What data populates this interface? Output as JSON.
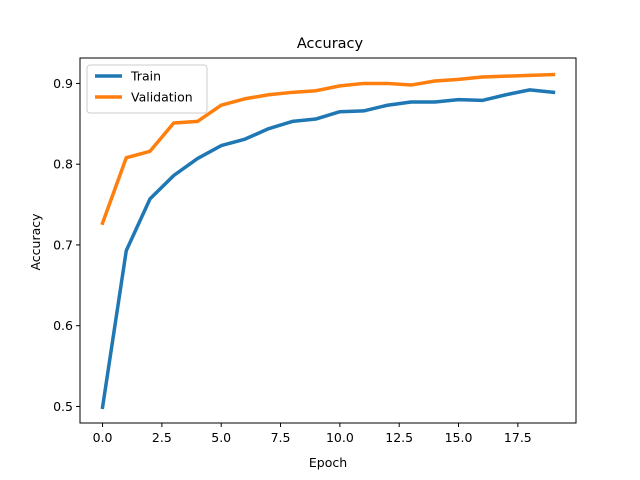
{
  "chart_data": {
    "type": "line",
    "title": "Accuracy",
    "xlabel": "Epoch",
    "ylabel": "Accuracy",
    "xlim": [
      -0.95,
      19.95
    ],
    "ylim": [
      0.4795,
      0.9315
    ],
    "xticks": [
      0,
      2.5,
      5,
      7.5,
      10,
      12.5,
      15,
      17.5
    ],
    "xtick_labels": [
      "0.0",
      "2.5",
      "5.0",
      "7.5",
      "10.0",
      "12.5",
      "15.0",
      "17.5"
    ],
    "yticks": [
      0.5,
      0.6,
      0.7,
      0.8,
      0.9
    ],
    "ytick_labels": [
      "0.5",
      "0.6",
      "0.7",
      "0.8",
      "0.9"
    ],
    "grid": false,
    "legend_position": "top-left",
    "x": [
      0,
      1,
      2,
      3,
      4,
      5,
      6,
      7,
      8,
      9,
      10,
      11,
      12,
      13,
      14,
      15,
      16,
      17,
      18,
      19
    ],
    "series": [
      {
        "name": "Train",
        "color": "#1f77b4",
        "values": [
          0.499,
          0.693,
          0.757,
          0.786,
          0.807,
          0.823,
          0.831,
          0.844,
          0.853,
          0.856,
          0.865,
          0.866,
          0.873,
          0.877,
          0.877,
          0.88,
          0.879,
          0.886,
          0.892,
          0.889
        ]
      },
      {
        "name": "Validation",
        "color": "#ff7f0e",
        "values": [
          0.727,
          0.808,
          0.816,
          0.851,
          0.853,
          0.873,
          0.881,
          0.886,
          0.889,
          0.891,
          0.897,
          0.9,
          0.9,
          0.898,
          0.903,
          0.905,
          0.908,
          0.909,
          0.91,
          0.911
        ]
      }
    ]
  }
}
